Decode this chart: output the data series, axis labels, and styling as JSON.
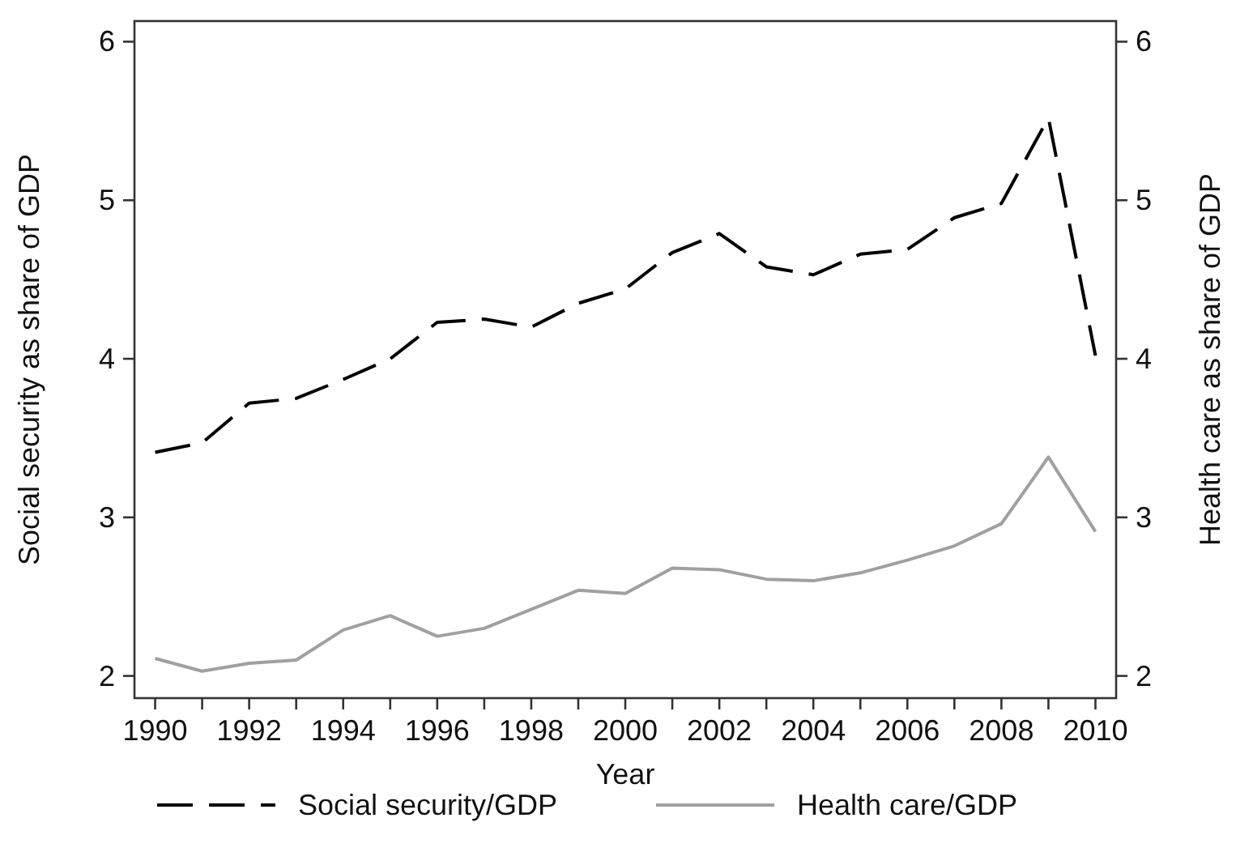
{
  "chart_data": {
    "type": "line",
    "xlabel": "Year",
    "ylabel": "Social security as share of GDP",
    "y2label": "Health care as share of GDP",
    "x": [
      1990,
      1991,
      1992,
      1993,
      1994,
      1995,
      1996,
      1997,
      1998,
      1999,
      2000,
      2001,
      2002,
      2003,
      2004,
      2005,
      2006,
      2007,
      2008,
      2009,
      2010
    ],
    "series": [
      {
        "name": "Social security/GDP",
        "color": "#000000",
        "line_style": "dashed",
        "values": [
          3.41,
          3.47,
          3.72,
          3.75,
          3.87,
          4.0,
          4.23,
          4.25,
          4.2,
          4.35,
          4.44,
          4.67,
          4.79,
          4.58,
          4.53,
          4.66,
          4.69,
          4.89,
          4.98,
          5.52,
          4.02
        ]
      },
      {
        "name": "Health care/GDP",
        "color": "#a0a0a0",
        "line_style": "solid",
        "values": [
          2.11,
          2.03,
          2.08,
          2.1,
          2.29,
          2.38,
          2.25,
          2.3,
          2.42,
          2.54,
          2.52,
          2.68,
          2.67,
          2.61,
          2.6,
          2.65,
          2.73,
          2.82,
          2.96,
          3.38,
          2.91
        ]
      }
    ],
    "xlim": [
      1989.56,
      2010.44
    ],
    "xticks": [
      1990,
      {
        "value": 1991,
        "label": null
      },
      1992,
      {
        "value": 1993,
        "label": null
      },
      1994,
      {
        "value": 1995,
        "label": null
      },
      1996,
      {
        "value": 1997,
        "label": null
      },
      1998,
      {
        "value": 1999,
        "label": null
      },
      2000,
      {
        "value": 2001,
        "label": null
      },
      2002,
      {
        "value": 2003,
        "label": null
      },
      2004,
      {
        "value": 2005,
        "label": null
      },
      2006,
      {
        "value": 2007,
        "label": null
      },
      2008,
      {
        "value": 2009,
        "label": null
      },
      2010
    ],
    "ylim": [
      1.86,
      6.13
    ],
    "yticks": [
      2,
      3,
      4,
      5,
      6
    ],
    "y2lim": [
      1.86,
      6.13
    ],
    "y2ticks": [
      2,
      3,
      4,
      5,
      6
    ],
    "grid": false,
    "legend": "bottom"
  }
}
